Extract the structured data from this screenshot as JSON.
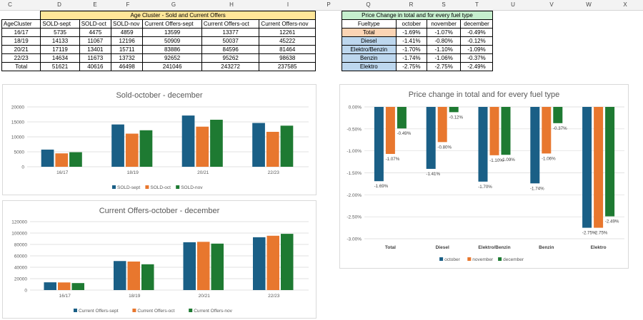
{
  "column_headers": [
    "C",
    "D",
    "E",
    "F",
    "G",
    "H",
    "I",
    "P",
    "Q",
    "R",
    "S",
    "T",
    "U",
    "V",
    "W",
    "X"
  ],
  "colors": {
    "series1": "#1a5f86",
    "series2": "#e8772e",
    "series3": "#1e7a32",
    "header_yellow": "#ffe699",
    "header_green": "#c6efce",
    "total_orange": "#fbd4b4",
    "fuel_blue": "#bdd7ee"
  },
  "age_table": {
    "title": "Age Cluster - Sold and Current Offers",
    "headers": [
      "AgeCluster",
      "SOLD-sept",
      "SOLD-oct",
      "SOLD-nov",
      "Current Offers-sept",
      "Current Offers-oct",
      "Current Offers-nov"
    ],
    "rows": [
      [
        "16/17",
        "5735",
        "4475",
        "4859",
        "13599",
        "13377",
        "12261"
      ],
      [
        "18/19",
        "14133",
        "11067",
        "12196",
        "50909",
        "50037",
        "45222"
      ],
      [
        "20/21",
        "17119",
        "13401",
        "15711",
        "83886",
        "84596",
        "81464"
      ],
      [
        "22/23",
        "14634",
        "11673",
        "13732",
        "92652",
        "95262",
        "98638"
      ],
      [
        "Total",
        "51621",
        "40616",
        "46498",
        "241046",
        "243272",
        "237585"
      ]
    ]
  },
  "price_table": {
    "title": "Price Change in total and for every fuel type",
    "headers": [
      "Fueltype",
      "october",
      "november",
      "december"
    ],
    "rows": [
      [
        "Total",
        "-1.69%",
        "-1.07%",
        "-0.49%"
      ],
      [
        "Diesel",
        "-1.41%",
        "-0.80%",
        "-0.12%"
      ],
      [
        "Elektro/Benzin",
        "-1.70%",
        "-1.10%",
        "-1.09%"
      ],
      [
        "Benzin",
        "-1.74%",
        "-1.06%",
        "-0.37%"
      ],
      [
        "Elektro",
        "-2.75%",
        "-2.75%",
        "-2.49%"
      ]
    ]
  },
  "chart_data": [
    {
      "type": "bar",
      "title": "Sold-october - december",
      "categories": [
        "16/17",
        "18/19",
        "20/21",
        "22/23"
      ],
      "series": [
        {
          "name": "SOLD-sept",
          "values": [
            5735,
            14133,
            17119,
            14634
          ]
        },
        {
          "name": "SOLD-oct",
          "values": [
            4475,
            11067,
            13401,
            11673
          ]
        },
        {
          "name": "SOLD-nov",
          "values": [
            4859,
            12196,
            15711,
            13732
          ]
        }
      ],
      "ylim": [
        0,
        20000
      ],
      "yticks": [
        "0",
        "5000",
        "10000",
        "15000",
        "20000"
      ],
      "grid": true,
      "legend": "bottom"
    },
    {
      "type": "bar",
      "title": "Current Offers-october - december",
      "categories": [
        "16/17",
        "18/19",
        "20/21",
        "22/23"
      ],
      "series": [
        {
          "name": "Current Offers-sept",
          "values": [
            13599,
            50909,
            83886,
            92652
          ]
        },
        {
          "name": "Current Offers-oct",
          "values": [
            13377,
            50037,
            84596,
            95262
          ]
        },
        {
          "name": "Current Offers-nov",
          "values": [
            12261,
            45222,
            81464,
            98638
          ]
        }
      ],
      "ylim": [
        0,
        120000
      ],
      "yticks": [
        "0",
        "20000",
        "40000",
        "60000",
        "80000",
        "100000",
        "120000"
      ],
      "grid": true,
      "legend": "bottom"
    },
    {
      "type": "bar",
      "title": "Price change in total and for every fuel type",
      "categories": [
        "Total",
        "Diesel",
        "Elektro/Benzin",
        "Benzin",
        "Elektro"
      ],
      "series": [
        {
          "name": "october",
          "values": [
            -1.69,
            -1.41,
            -1.7,
            -1.74,
            -2.75
          ],
          "labels": [
            "-1.69%",
            "-1.41%",
            "-1.70%",
            "-1.74%",
            "-2.75%"
          ]
        },
        {
          "name": "november",
          "values": [
            -1.07,
            -0.8,
            -1.1,
            -1.06,
            -2.75
          ],
          "labels": [
            "-1.07%",
            "-0.80%",
            "-1.10%",
            "-1.06%",
            "-2.75%"
          ]
        },
        {
          "name": "december",
          "values": [
            -0.49,
            -0.12,
            -1.09,
            -0.37,
            -2.49
          ],
          "labels": [
            "-0.49%",
            "-0.12%",
            "-1.09%",
            "-0.37%",
            "-2.49%"
          ]
        }
      ],
      "ylim": [
        -3.0,
        0.0
      ],
      "yticks": [
        "0.00%",
        "-0.50%",
        "-1.00%",
        "-1.50%",
        "-2.00%",
        "-2.50%",
        "-3.00%"
      ],
      "grid": true,
      "legend": "bottom"
    }
  ]
}
